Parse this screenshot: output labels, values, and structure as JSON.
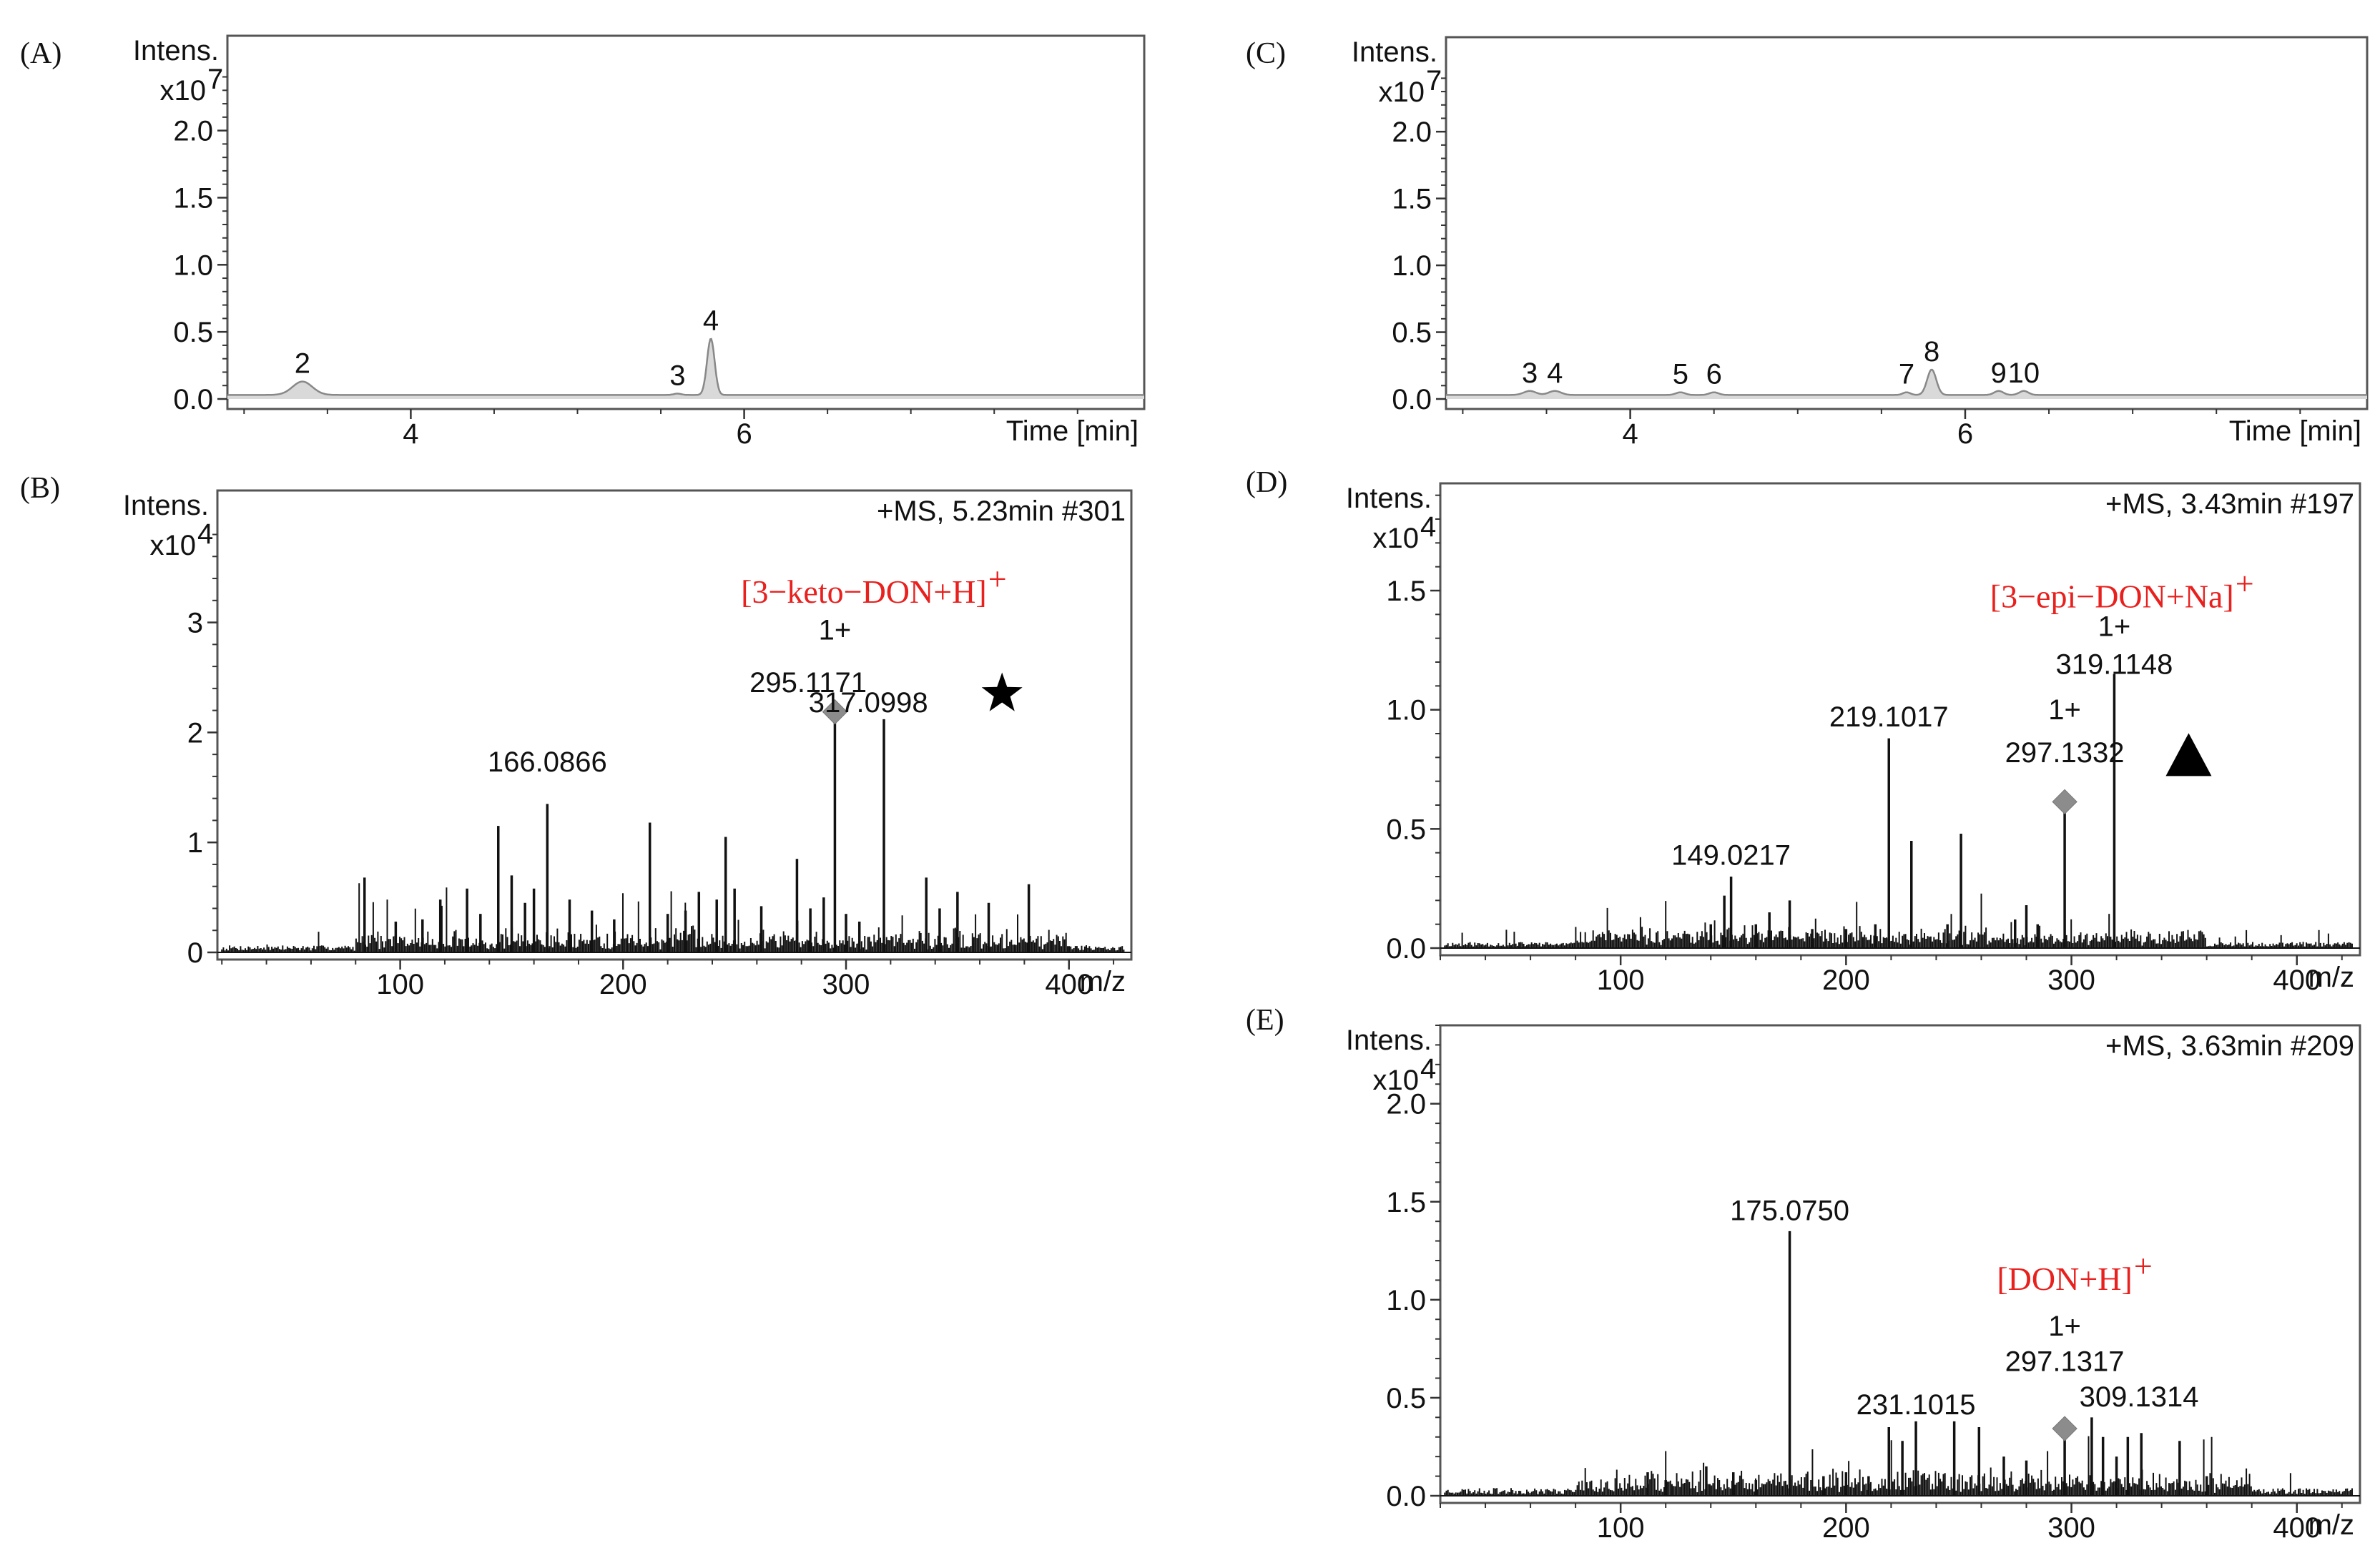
{
  "chart_data": [
    {
      "id": "A",
      "type": "line",
      "subtype": "chromatogram",
      "panel_label": "(A)",
      "ylabel": "Intens.",
      "yexp": "x10",
      "yexp_sup": "7",
      "xlabel": "Time [min]",
      "xlim": [
        2.9,
        8.4
      ],
      "ylim": [
        0,
        2.6
      ],
      "xticks": [
        4,
        6
      ],
      "yticks": [
        "0.0",
        "0.5",
        "1.0",
        "1.5",
        "2.0"
      ],
      "baseline": 0.03,
      "peaks": [
        {
          "label": "2",
          "x": 3.35,
          "height": 0.1,
          "width": 0.13
        },
        {
          "label": "3",
          "x": 5.6,
          "height": 0.01,
          "width": 0.05
        },
        {
          "label": "4",
          "x": 5.8,
          "height": 0.42,
          "width": 0.05
        }
      ]
    },
    {
      "id": "C",
      "type": "line",
      "subtype": "chromatogram",
      "panel_label": "(C)",
      "ylabel": "Intens.",
      "yexp": "x10",
      "yexp_sup": "7",
      "xlabel": "Time [min]",
      "xlim": [
        2.9,
        8.4
      ],
      "ylim": [
        0,
        2.6
      ],
      "xticks": [
        4,
        6
      ],
      "yticks": [
        "0.0",
        "0.5",
        "1.0",
        "1.5",
        "2.0"
      ],
      "baseline": 0.03,
      "peaks": [
        {
          "label": "3",
          "x": 3.4,
          "height": 0.03,
          "width": 0.08
        },
        {
          "label": "4",
          "x": 3.55,
          "height": 0.03,
          "width": 0.08
        },
        {
          "label": "5",
          "x": 4.3,
          "height": 0.02,
          "width": 0.06
        },
        {
          "label": "6",
          "x": 4.5,
          "height": 0.02,
          "width": 0.06
        },
        {
          "label": "7",
          "x": 5.65,
          "height": 0.02,
          "width": 0.05
        },
        {
          "label": "8",
          "x": 5.8,
          "height": 0.19,
          "width": 0.06
        },
        {
          "label": "9",
          "x": 6.2,
          "height": 0.03,
          "width": 0.06
        },
        {
          "label": "10",
          "x": 6.35,
          "height": 0.03,
          "width": 0.06
        }
      ]
    },
    {
      "id": "B",
      "type": "bar",
      "subtype": "mass-spectrum",
      "panel_label": "(B)",
      "ylabel": "Intens.",
      "yexp": "x10",
      "yexp_sup": "4",
      "xlabel": "m/z",
      "header": "+MS, 5.23min #301",
      "xlim": [
        18,
        428
      ],
      "ylim": [
        0,
        4.2
      ],
      "xticks": [
        100,
        200,
        300,
        400
      ],
      "yticks": [
        "0",
        "1",
        "2",
        "3"
      ],
      "noise": {
        "from": 20,
        "to": 425,
        "level": 0.05,
        "peak_band": [
          80,
          400
        ],
        "seed": 7
      },
      "peaks": [
        [
          84,
          0.68
        ],
        [
          98,
          0.28
        ],
        [
          110,
          0.3
        ],
        [
          118,
          0.48
        ],
        [
          130,
          0.58
        ],
        [
          136,
          0.35
        ],
        [
          144,
          1.15
        ],
        [
          150,
          0.7
        ],
        [
          156,
          0.45
        ],
        [
          160,
          0.58
        ],
        [
          166,
          1.35
        ],
        [
          176,
          0.48
        ],
        [
          186,
          0.38
        ],
        [
          196,
          0.3
        ],
        [
          212,
          1.18
        ],
        [
          220,
          0.35
        ],
        [
          228,
          0.38
        ],
        [
          234,
          0.55
        ],
        [
          242,
          0.48
        ],
        [
          246,
          1.05
        ],
        [
          250,
          0.58
        ],
        [
          262,
          0.42
        ],
        [
          278,
          0.85
        ],
        [
          284,
          0.4
        ],
        [
          290,
          0.5
        ],
        [
          295,
          2.2
        ],
        [
          300,
          0.35
        ],
        [
          306,
          0.28
        ],
        [
          317,
          2.12
        ],
        [
          336,
          0.68
        ],
        [
          342,
          0.4
        ],
        [
          350,
          0.55
        ],
        [
          364,
          0.45
        ],
        [
          382,
          0.62
        ]
      ],
      "diamonds": [
        295
      ],
      "annotations": [
        {
          "text": "166.0866",
          "mz": 166,
          "y": 1.58
        },
        {
          "text": "1+",
          "mz": 295,
          "y": 2.78
        },
        {
          "text": "295.1171",
          "mz": 283,
          "y": 2.3
        },
        {
          "text": "317.0998",
          "mz": 310,
          "y": 2.12
        }
      ],
      "ion_label": {
        "text": "[3−keto−DON+H]",
        "sup": "+",
        "mz": 308,
        "y": 3.18
      },
      "marker": {
        "shape": "star",
        "mz": 370,
        "y": 2.35
      }
    },
    {
      "id": "D",
      "type": "bar",
      "subtype": "mass-spectrum",
      "panel_label": "(D)",
      "ylabel": "Intens.",
      "yexp": "x10",
      "yexp_sup": "4",
      "xlabel": "m/z",
      "header": "+MS, 3.43min #197",
      "xlim": [
        20,
        428
      ],
      "ylim": [
        0,
        1.95
      ],
      "xticks": [
        100,
        200,
        300,
        400
      ],
      "yticks": [
        "0.0",
        "0.5",
        "1.0",
        "1.5"
      ],
      "noise": {
        "from": 22,
        "to": 425,
        "level": 0.02,
        "peak_band": [
          80,
          360
        ],
        "seed": 11
      },
      "peaks": [
        [
          140,
          0.1
        ],
        [
          146,
          0.22
        ],
        [
          149,
          0.3
        ],
        [
          160,
          0.1
        ],
        [
          166,
          0.15
        ],
        [
          175,
          0.2
        ],
        [
          185,
          0.08
        ],
        [
          200,
          0.08
        ],
        [
          213,
          0.1
        ],
        [
          219,
          0.88
        ],
        [
          229,
          0.45
        ],
        [
          245,
          0.1
        ],
        [
          251,
          0.48
        ],
        [
          275,
          0.12
        ],
        [
          280,
          0.18
        ],
        [
          285,
          0.1
        ],
        [
          297,
          0.62
        ],
        [
          319,
          1.15
        ]
      ],
      "diamonds": [
        297
      ],
      "annotations": [
        {
          "text": "149.0217",
          "mz": 149,
          "y": 0.32
        },
        {
          "text": "219.1017",
          "mz": 219,
          "y": 0.9
        },
        {
          "text": "1+",
          "mz": 319,
          "y": 1.28
        },
        {
          "text": "319.1148",
          "mz": 319,
          "y": 1.12
        },
        {
          "text": "1+",
          "mz": 297,
          "y": 0.93
        },
        {
          "text": "297.1332",
          "mz": 297,
          "y": 0.75
        }
      ],
      "ion_label": {
        "text": "[3−epi−DON+Na]",
        "sup": "+",
        "mz": 318,
        "y": 1.43
      },
      "marker": {
        "shape": "triangle",
        "mz": 352,
        "y": 0.8
      }
    },
    {
      "id": "E",
      "type": "bar",
      "subtype": "mass-spectrum",
      "panel_label": "(E)",
      "ylabel": "Intens.",
      "yexp": "x10",
      "yexp_sup": "4",
      "xlabel": "m/z",
      "header": "+MS, 3.63min #209",
      "xlim": [
        20,
        428
      ],
      "ylim": [
        0,
        2.4
      ],
      "xticks": [
        100,
        200,
        300,
        400
      ],
      "yticks": [
        "0.0",
        "0.5",
        "1.0",
        "1.5",
        "2.0"
      ],
      "noise": {
        "from": 22,
        "to": 425,
        "level": 0.03,
        "peak_band": [
          80,
          380
        ],
        "seed": 23
      },
      "peaks": [
        [
          112,
          0.12
        ],
        [
          120,
          0.08
        ],
        [
          138,
          0.15
        ],
        [
          150,
          0.12
        ],
        [
          160,
          0.08
        ],
        [
          175,
          1.35
        ],
        [
          190,
          0.1
        ],
        [
          200,
          0.12
        ],
        [
          210,
          0.1
        ],
        [
          219,
          0.35
        ],
        [
          225,
          0.28
        ],
        [
          231,
          0.38
        ],
        [
          248,
          0.38
        ],
        [
          259,
          0.35
        ],
        [
          270,
          0.2
        ],
        [
          280,
          0.18
        ],
        [
          297,
          0.35
        ],
        [
          309,
          0.4
        ],
        [
          314,
          0.3
        ],
        [
          320,
          0.2
        ],
        [
          325,
          0.3
        ],
        [
          331,
          0.32
        ],
        [
          348,
          0.28
        ],
        [
          360,
          0.1
        ]
      ],
      "diamonds": [
        297
      ],
      "annotations": [
        {
          "text": "175.0750",
          "mz": 175,
          "y": 1.37
        },
        {
          "text": "1+",
          "mz": 297,
          "y": 0.78
        },
        {
          "text": "297.1317",
          "mz": 297,
          "y": 0.6
        },
        {
          "text": "231.1015",
          "mz": 231,
          "y": 0.38
        },
        {
          "text": "309.1314",
          "mz": 330,
          "y": 0.42
        }
      ],
      "ion_label": {
        "text": "[DON+H]",
        "sup": "+",
        "mz": 297,
        "y": 1.05
      },
      "marker": null
    }
  ]
}
